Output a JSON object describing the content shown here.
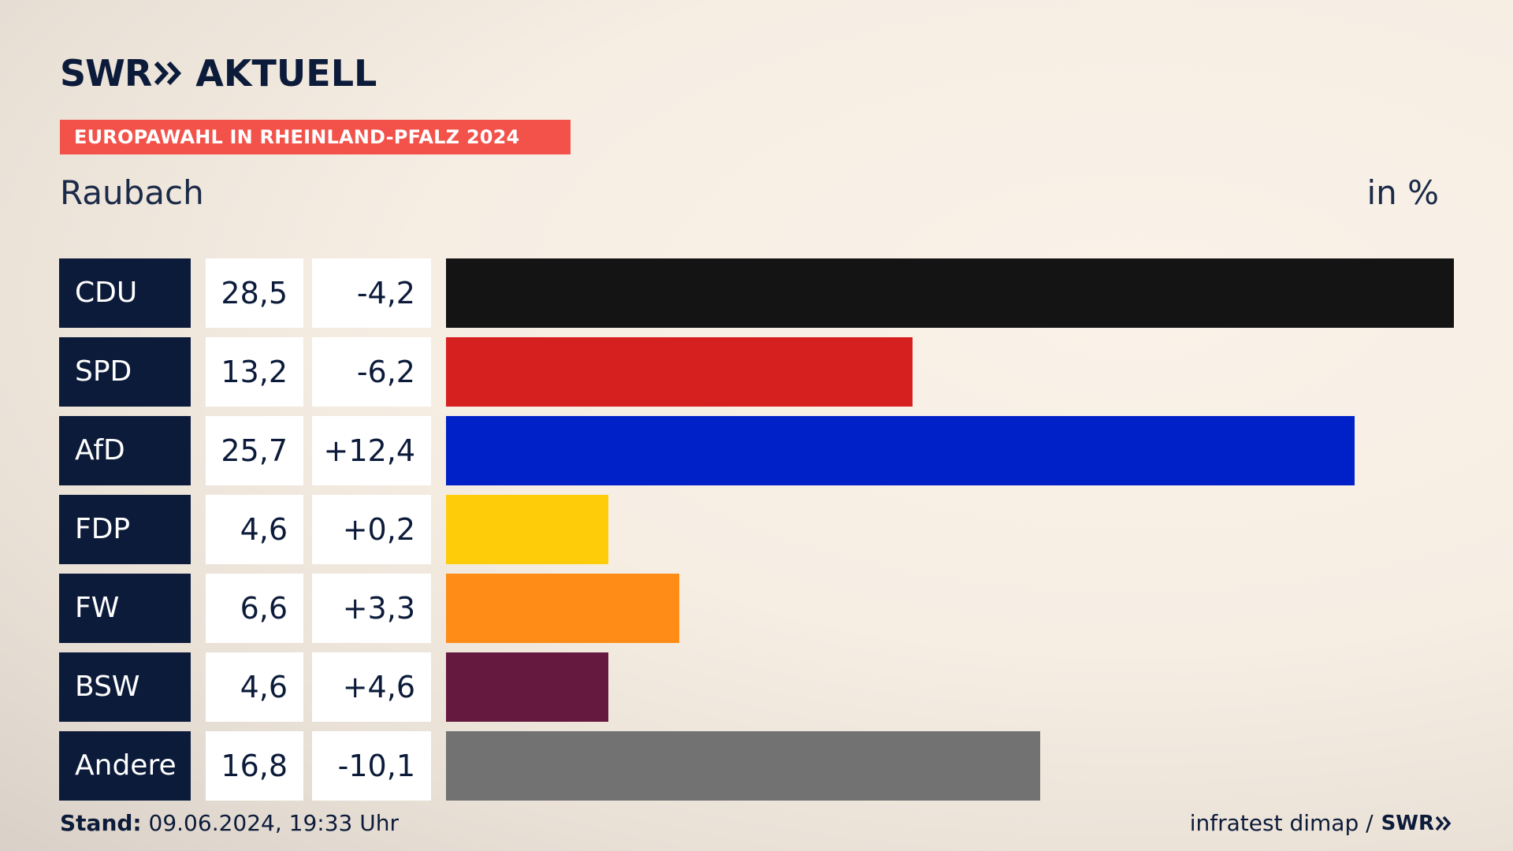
{
  "header": {
    "brand": "SWR",
    "brand_suffix": "AKTUELL",
    "banner": "EUROPAWAHL IN RHEINLAND-PFALZ 2024",
    "place": "Raubach",
    "unit": "in %"
  },
  "footer": {
    "stand_label": "Stand:",
    "stand_value": "09.06.2024, 19:33 Uhr",
    "source": "infratest dimap /",
    "source_brand": "SWR"
  },
  "colors": {
    "navy": "#0c1b3a",
    "banner": "#f2524a"
  },
  "chart_data": {
    "type": "bar",
    "orientation": "horizontal",
    "title": "Raubach",
    "unit": "in %",
    "categories": [
      "CDU",
      "SPD",
      "AfD",
      "FDP",
      "FW",
      "BSW",
      "Andere"
    ],
    "values": [
      28.5,
      13.2,
      25.7,
      4.6,
      6.6,
      4.6,
      16.8
    ],
    "value_labels": [
      "28,5",
      "13,2",
      "25,7",
      "4,6",
      "6,6",
      "4,6",
      "16,8"
    ],
    "diff_labels": [
      "-4,2",
      "-6,2",
      "+12,4",
      "+0,2",
      "+3,3",
      "+4,6",
      "-10,1"
    ],
    "colors": [
      "#141414",
      "#d61f1f",
      "#0021c8",
      "#ffcc0a",
      "#ff8c16",
      "#66193f",
      "#727272"
    ]
  }
}
